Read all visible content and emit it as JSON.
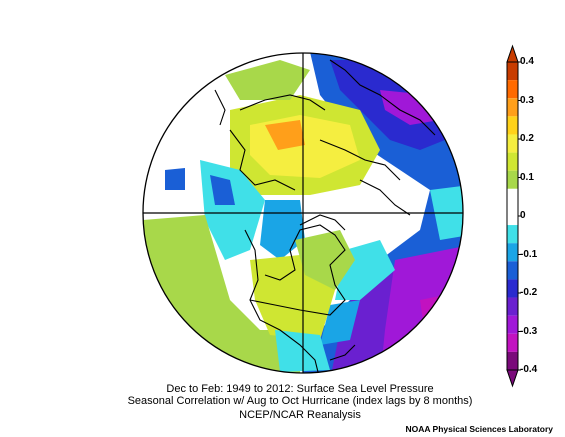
{
  "figure": {
    "caption_line1": "Dec to Feb: 1949 to 2012: Surface Sea Level Pressure",
    "caption_line2": "Seasonal Correlation w/ Aug to Oct Hurricane (index lags by 8 months)",
    "caption_line3": "NCEP/NCAR Reanalysis",
    "credit": "NOAA Physical Sciences Laboratory",
    "projection": "north-polar-stereographic"
  },
  "colorbar": {
    "orientation": "vertical",
    "placement": "right",
    "range": [
      -0.4,
      0.4
    ],
    "ticks": [
      {
        "value": 0.4,
        "label": "0.4"
      },
      {
        "value": 0.3,
        "label": "0.3"
      },
      {
        "value": 0.2,
        "label": "0.2"
      },
      {
        "value": 0.1,
        "label": "0.1"
      },
      {
        "value": 0,
        "label": "0"
      },
      {
        "value": -0.1,
        "label": "-0.1"
      },
      {
        "value": -0.2,
        "label": "-0.2"
      },
      {
        "value": -0.3,
        "label": "-0.3"
      },
      {
        "value": -0.4,
        "label": "-0.4"
      }
    ],
    "colors_top_to_bottom": [
      "#c83c00",
      "#ff6a00",
      "#ff9f1a",
      "#ffd21a",
      "#f5ee40",
      "#cfe632",
      "#a8d84a",
      "#ffffff",
      "#ffffff",
      "#40e0e8",
      "#1aa5e6",
      "#1a5fd6",
      "#2a2acf",
      "#6a20d0",
      "#a018d8",
      "#c212c0",
      "#7a0a7a"
    ]
  }
}
